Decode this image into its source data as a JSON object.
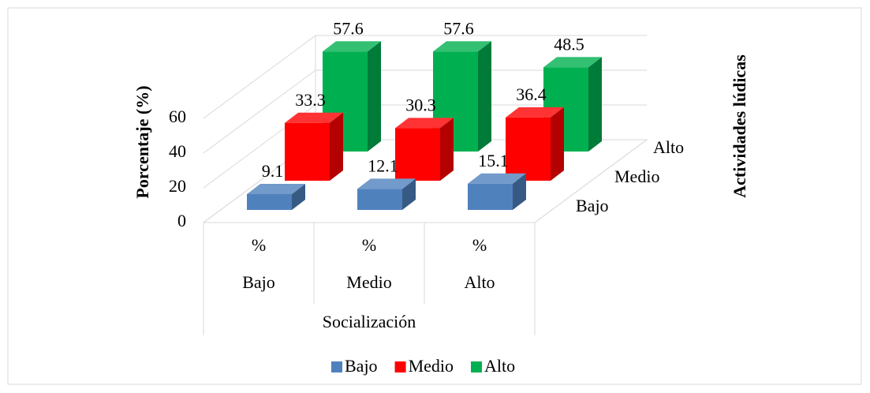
{
  "chart_data": {
    "type": "bar3d",
    "y_axis_label": "Porcentaje (%)",
    "x_axis_label": "Socialización",
    "depth_axis_label": "Actividades lúdicas",
    "categories": [
      "Bajo",
      "Medio",
      "Alto"
    ],
    "category_sublabels": [
      "%",
      "%",
      "%"
    ],
    "series": [
      {
        "name": "Bajo",
        "color": "#4f81bd",
        "values": [
          9.1,
          12.1,
          15.1
        ]
      },
      {
        "name": "Medio",
        "color": "#ff0000",
        "values": [
          33.3,
          30.3,
          36.4
        ]
      },
      {
        "name": "Alto",
        "color": "#00b050",
        "values": [
          57.6,
          57.6,
          48.5
        ]
      }
    ],
    "ylim": [
      0,
      60
    ],
    "yticks": [
      0,
      20,
      40,
      60
    ],
    "grid": true,
    "legend": "bottom"
  }
}
